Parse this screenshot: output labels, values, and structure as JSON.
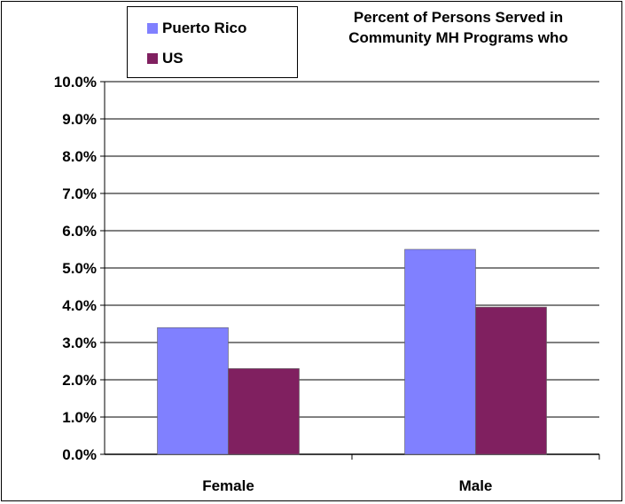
{
  "chart_data": {
    "type": "bar",
    "title_lines": [
      "Percent of Persons Served in",
      "Community MH Programs who"
    ],
    "categories": [
      "Female",
      "Male"
    ],
    "series": [
      {
        "name": "Puerto Rico",
        "values": [
          3.4,
          5.5
        ],
        "color": "#8080ff"
      },
      {
        "name": "US",
        "values": [
          2.3,
          3.95
        ],
        "color": "#802060"
      }
    ],
    "y_ticks": [
      "0.0%",
      "1.0%",
      "2.0%",
      "3.0%",
      "4.0%",
      "5.0%",
      "6.0%",
      "7.0%",
      "8.0%",
      "9.0%",
      "10.0%"
    ],
    "ylim": [
      0,
      10
    ],
    "grid": true,
    "legend_position": "top-left"
  }
}
